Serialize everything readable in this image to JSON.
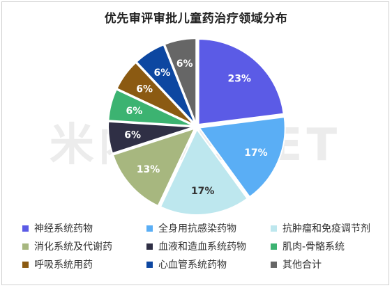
{
  "chart_data": {
    "type": "pie",
    "title": "优先审评审批儿童药治疗领域分布",
    "watermark": "米内MENET",
    "slices": [
      {
        "label": "神经系统药物",
        "value": 23,
        "text": "23%",
        "color": "#5b5be6",
        "text_color": "#ffffff"
      },
      {
        "label": "全身用抗感染药物",
        "value": 17,
        "text": "17%",
        "color": "#5aaef5",
        "text_color": "#ffffff"
      },
      {
        "label": "抗肿瘤和免疫调节剂",
        "value": 17,
        "text": "17%",
        "color": "#bde7ee",
        "text_color": "#333333"
      },
      {
        "label": "消化系统及代谢药",
        "value": 13,
        "text": "13%",
        "color": "#a7b77f",
        "text_color": "#ffffff"
      },
      {
        "label": "血液和造血系统药物",
        "value": 6,
        "text": "6%",
        "color": "#2f2f45",
        "text_color": "#ffffff"
      },
      {
        "label": "肌肉-骨骼系统",
        "value": 6,
        "text": "6%",
        "color": "#3cb371",
        "text_color": "#ffffff"
      },
      {
        "label": "呼吸系统用药",
        "value": 6,
        "text": "6%",
        "color": "#8b5a12",
        "text_color": "#ffffff"
      },
      {
        "label": "心血管系统药物",
        "value": 6,
        "text": "6%",
        "color": "#0d47a1",
        "text_color": "#ffffff"
      },
      {
        "label": "其他合计",
        "value": 6,
        "text": "6%",
        "color": "#666666",
        "text_color": "#ffffff"
      }
    ],
    "legend_position": "bottom"
  }
}
